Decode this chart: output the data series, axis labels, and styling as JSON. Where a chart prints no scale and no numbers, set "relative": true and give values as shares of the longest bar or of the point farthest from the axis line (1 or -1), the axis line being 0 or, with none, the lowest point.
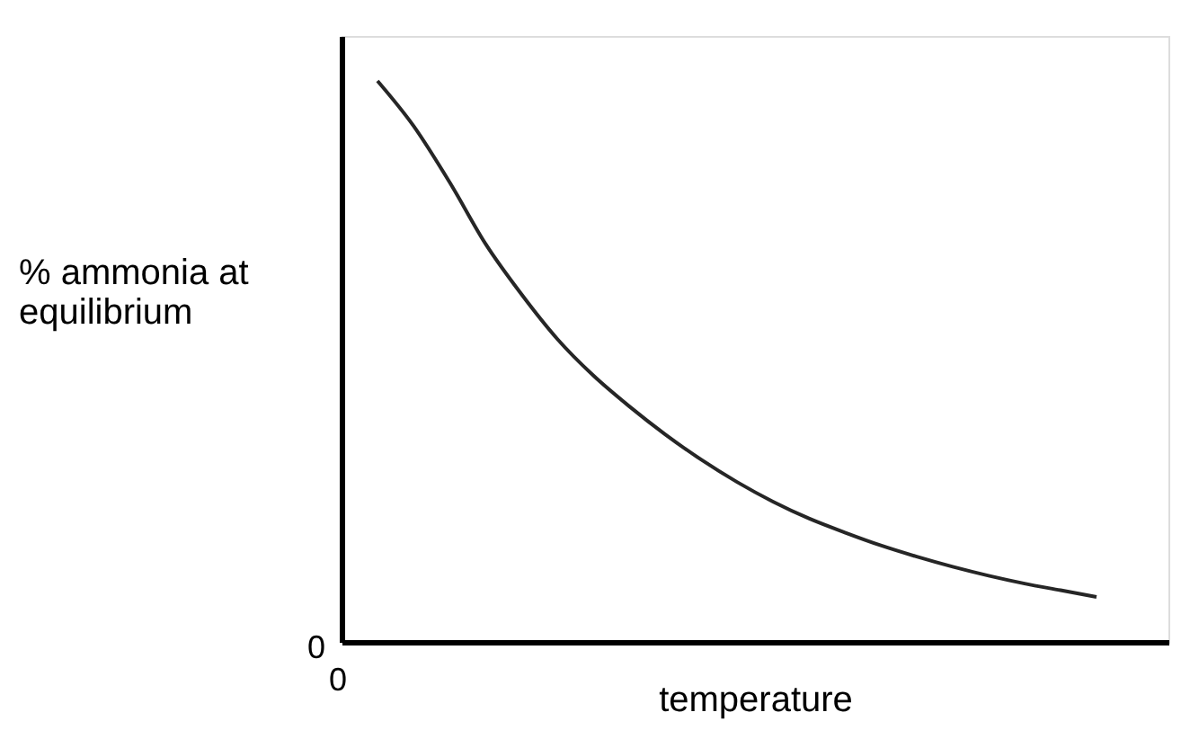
{
  "chart_data": {
    "type": "line",
    "relative": true,
    "xlabel": "temperature",
    "ylabel": "% ammonia at equilibrium",
    "annotations": [
      "0",
      "0"
    ],
    "categories": [
      null,
      null,
      null,
      null,
      null,
      null,
      null,
      null,
      null,
      null,
      null,
      null,
      null,
      null,
      null,
      null,
      null,
      null,
      null,
      null,
      null,
      null,
      null,
      null
    ],
    "series": [
      {
        "color": "#262626",
        "values": [
          null,
          1.0,
          0.92,
          0.82,
          0.71,
          0.62,
          0.54,
          0.475,
          0.42,
          0.37,
          0.325,
          0.285,
          0.25,
          0.22,
          0.195,
          0.172,
          0.152,
          0.134,
          0.118,
          0.104,
          0.092,
          0.08,
          null,
          null
        ]
      }
    ],
    "grid": false,
    "marker": "none",
    "line_style": "solid",
    "tick_labels": false
  }
}
